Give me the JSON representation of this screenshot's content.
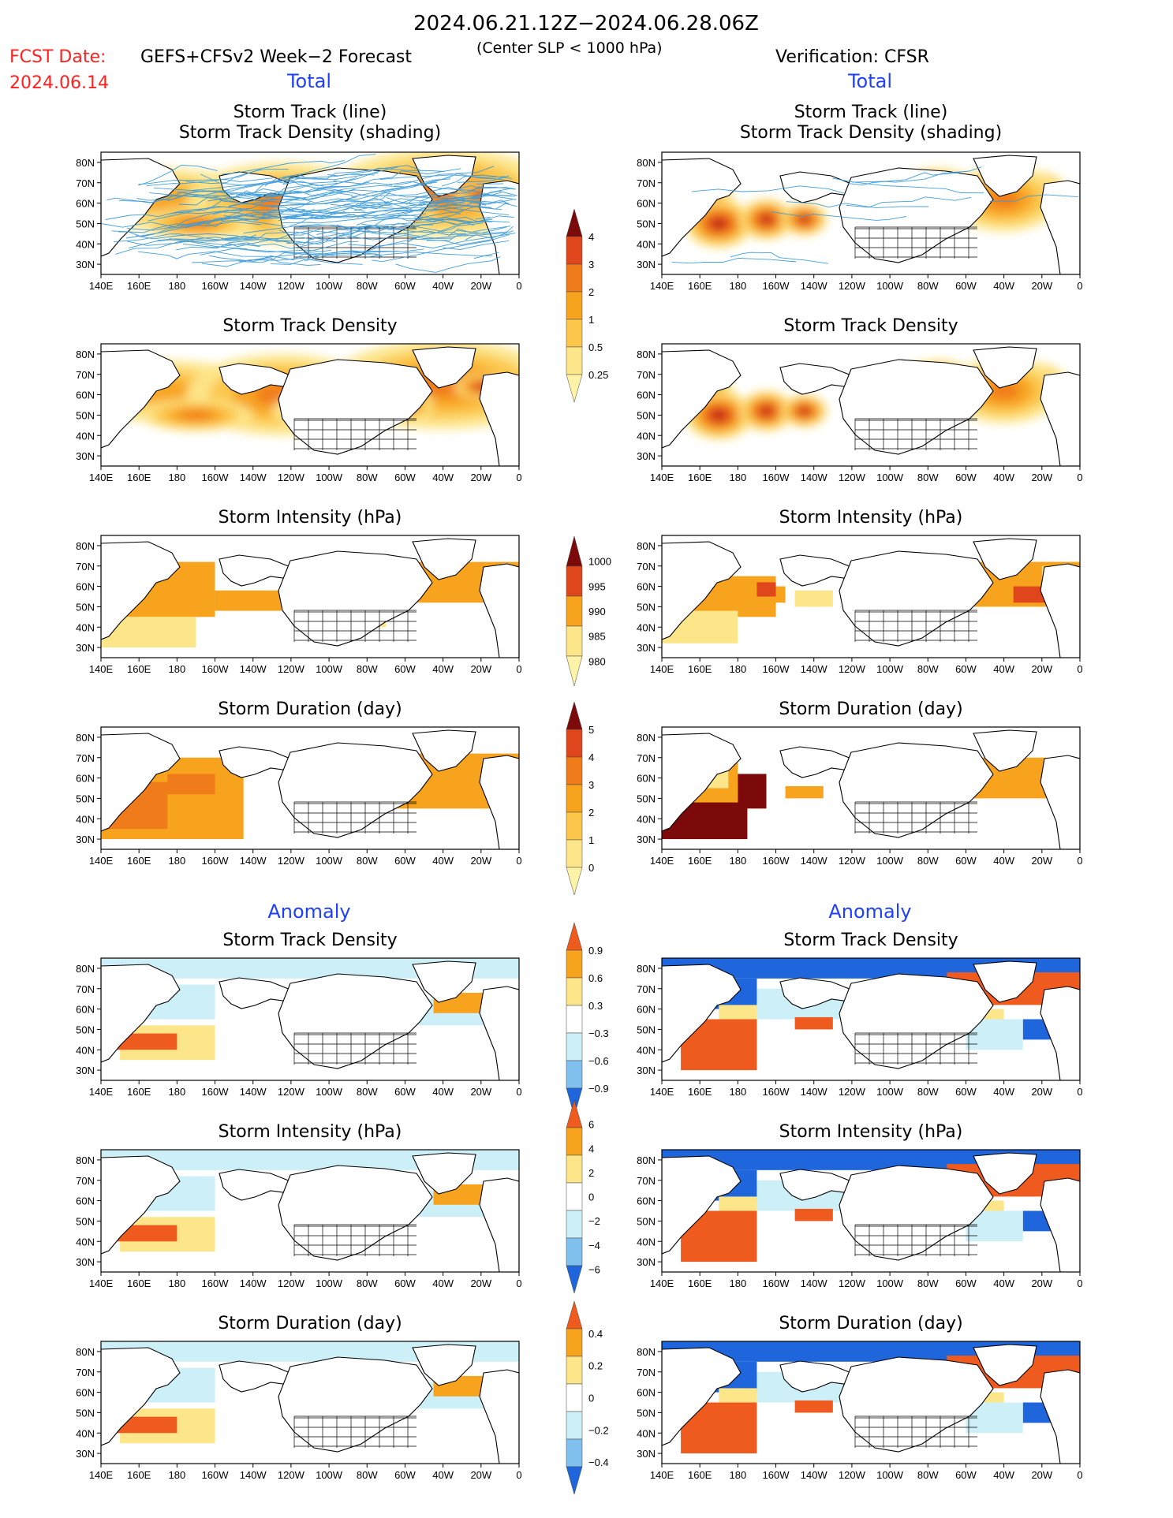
{
  "header": {
    "period": "2024.06.21.12Z−2024.06.28.06Z",
    "fcst_label": "FCST Date:",
    "fcst_date": "2024.06.14",
    "model": "GEFS+CFSv2 Week−2 Forecast",
    "criterion": "(Center SLP < 1000 hPa)",
    "verification": "Verification: CFSR"
  },
  "sections": {
    "total_left": "Total",
    "total_right": "Total",
    "anomaly_left": "Anomaly",
    "anomaly_right": "Anomaly"
  },
  "axes": {
    "lon_ticks": [
      "140E",
      "160E",
      "180",
      "160W",
      "140W",
      "120W",
      "100W",
      "80W",
      "60W",
      "40W",
      "20W",
      "0"
    ],
    "lat_ticks": [
      "80N",
      "70N",
      "60N",
      "50N",
      "40N",
      "30N"
    ]
  },
  "colors": {
    "track_line": "#3a9ad9",
    "pos": [
      "#fff3a8",
      "#fde68a",
      "#fcc64a",
      "#f8a31d",
      "#f07b1a",
      "#e0461b",
      "#b71d12",
      "#7d0a0a"
    ],
    "anom_pos": [
      "#fde68a",
      "#f8a31d",
      "#ef5a1e"
    ],
    "anom_neg": [
      "#cdeff8",
      "#7fc0ee",
      "#1f66dc"
    ]
  },
  "chart_data": [
    {
      "id": "fc-track",
      "type": "heatmap",
      "title": [
        "Storm Track (line)",
        "Storm Track Density (shading)"
      ],
      "side": "forecast",
      "group": "total",
      "mode": "track"
    },
    {
      "id": "ob-track",
      "type": "heatmap",
      "title": [
        "Storm Track (line)",
        "Storm Track Density (shading)"
      ],
      "side": "verification",
      "group": "total",
      "mode": "track"
    },
    {
      "id": "fc-density",
      "type": "heatmap",
      "title": [
        "Storm Track Density"
      ],
      "side": "forecast",
      "group": "total",
      "mode": "density"
    },
    {
      "id": "ob-density",
      "type": "heatmap",
      "title": [
        "Storm Track Density"
      ],
      "side": "verification",
      "group": "total",
      "mode": "density"
    },
    {
      "id": "fc-intensity",
      "type": "heatmap",
      "title": [
        "Storm Intensity (hPa)"
      ],
      "side": "forecast",
      "group": "total",
      "mode": "intensity"
    },
    {
      "id": "ob-intensity",
      "type": "heatmap",
      "title": [
        "Storm Intensity (hPa)"
      ],
      "side": "verification",
      "group": "total",
      "mode": "intensity"
    },
    {
      "id": "fc-duration",
      "type": "heatmap",
      "title": [
        "Storm Duration (day)"
      ],
      "side": "forecast",
      "group": "total",
      "mode": "duration"
    },
    {
      "id": "ob-duration",
      "type": "heatmap",
      "title": [
        "Storm Duration (day)"
      ],
      "side": "verification",
      "group": "total",
      "mode": "duration"
    },
    {
      "id": "fc-density-anom",
      "type": "heatmap",
      "title": [
        "Storm Track Density"
      ],
      "side": "forecast",
      "group": "anomaly",
      "mode": "anom"
    },
    {
      "id": "ob-density-anom",
      "type": "heatmap",
      "title": [
        "Storm Track Density"
      ],
      "side": "verification",
      "group": "anomaly",
      "mode": "anom"
    },
    {
      "id": "fc-intensity-anom",
      "type": "heatmap",
      "title": [
        "Storm Intensity (hPa)"
      ],
      "side": "forecast",
      "group": "anomaly",
      "mode": "anom"
    },
    {
      "id": "ob-intensity-anom",
      "type": "heatmap",
      "title": [
        "Storm Intensity (hPa)"
      ],
      "side": "verification",
      "group": "anomaly",
      "mode": "anom"
    },
    {
      "id": "fc-duration-anom",
      "type": "heatmap",
      "title": [
        "Storm Duration (day)"
      ],
      "side": "forecast",
      "group": "anomaly",
      "mode": "anom"
    },
    {
      "id": "ob-duration-anom",
      "type": "heatmap",
      "title": [
        "Storm Duration (day)"
      ],
      "side": "verification",
      "group": "anomaly",
      "mode": "anom"
    }
  ],
  "colorbars": [
    {
      "id": "cb-density",
      "labels": [
        "4",
        "3",
        "2",
        "1",
        "0.5",
        "0.25"
      ]
    },
    {
      "id": "cb-intensity",
      "labels": [
        "1000",
        "995",
        "990",
        "985",
        "980"
      ]
    },
    {
      "id": "cb-duration",
      "labels": [
        "5",
        "4",
        "3",
        "2",
        "1",
        "0"
      ]
    },
    {
      "id": "cb-density-anom",
      "labels": [
        "0.9",
        "0.6",
        "0.3",
        "−0.3",
        "−0.6",
        "−0.9"
      ]
    },
    {
      "id": "cb-intensity-anom",
      "labels": [
        "6",
        "4",
        "2",
        "0",
        "−2",
        "−4",
        "−6"
      ]
    },
    {
      "id": "cb-duration-anom",
      "labels": [
        "0.4",
        "0.2",
        "0",
        "−0.2",
        "−0.4"
      ]
    }
  ]
}
